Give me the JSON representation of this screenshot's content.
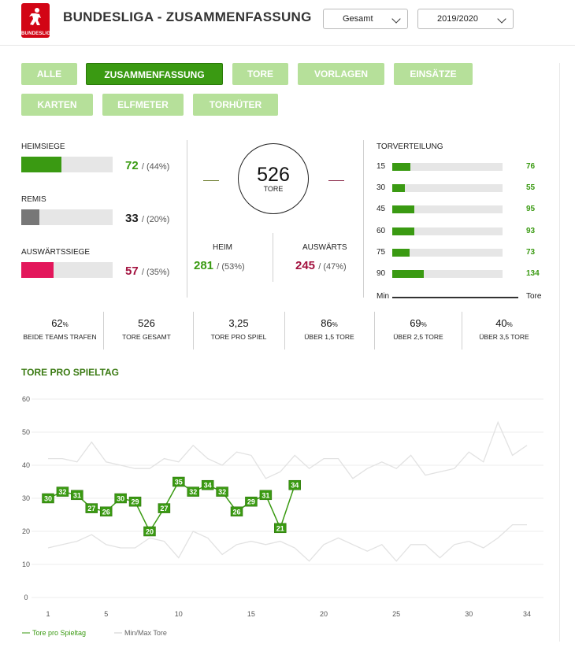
{
  "header": {
    "logo_text": "BUNDESLIGA",
    "title": "BUNDESLIGA - ZUSAMMENFASSUNG",
    "filter_selected": "Gesamt",
    "season_selected": "2019/2020"
  },
  "tabs": [
    {
      "label": "ALLE",
      "active": false
    },
    {
      "label": "ZUSAMMENFASSUNG",
      "active": true
    },
    {
      "label": "TORE",
      "active": false
    },
    {
      "label": "VORLAGEN",
      "active": false
    },
    {
      "label": "EINSÄTZE",
      "active": false
    },
    {
      "label": "KARTEN",
      "active": false
    },
    {
      "label": "ELFMETER",
      "active": false
    },
    {
      "label": "TORHÜTER",
      "active": false
    }
  ],
  "results": {
    "home": {
      "label": "HEIMSIEGE",
      "value": "72",
      "pct": "/ (44%)",
      "fraction": 0.44,
      "color": "#3a9a12"
    },
    "draw": {
      "label": "REMIS",
      "value": "33",
      "pct": "/ (20%)",
      "fraction": 0.2,
      "color": "#777777"
    },
    "away": {
      "label": "AUSWÄRTSSIEGE",
      "value": "57",
      "pct": "/ (35%)",
      "fraction": 0.35,
      "color": "#e3175b"
    }
  },
  "goals": {
    "total": "526",
    "total_label": "TORE",
    "home_label": "HEIM",
    "home_value": "281",
    "home_pct": "/ (53%)",
    "away_label": "AUSWÄRTS",
    "away_value": "245",
    "away_pct": "/ (47%)",
    "home_color": "#3a9a12",
    "away_color": "#a3123f"
  },
  "distribution": {
    "title": "TORVERTEILUNG",
    "axis_min": "Min",
    "axis_tore": "Tore",
    "max_value": 134,
    "rows": [
      {
        "min": "15",
        "value": "76",
        "n": 76
      },
      {
        "min": "30",
        "value": "55",
        "n": 55
      },
      {
        "min": "45",
        "value": "95",
        "n": 95
      },
      {
        "min": "60",
        "value": "93",
        "n": 93
      },
      {
        "min": "75",
        "value": "73",
        "n": 73
      },
      {
        "min": "90",
        "value": "134",
        "n": 134
      }
    ]
  },
  "stats": [
    {
      "value": "62",
      "unit": "%",
      "label": "BEIDE TEAMS TRAFEN"
    },
    {
      "value": "526",
      "unit": "",
      "label": "TORE GESAMT"
    },
    {
      "value": "3,25",
      "unit": "",
      "label": "TORE PRO SPIEL"
    },
    {
      "value": "86",
      "unit": "%",
      "label": "ÜBER 1,5 TORE"
    },
    {
      "value": "69",
      "unit": "%",
      "label": "ÜBER 2,5 TORE"
    },
    {
      "value": "40",
      "unit": "%",
      "label": "ÜBER 3,5 TORE"
    }
  ],
  "chart_section_title": "TORE PRO SPIELTAG",
  "chart_data": {
    "type": "line",
    "title": "TORE PRO SPIELTAG",
    "xlabel": "",
    "ylabel": "",
    "xlim": [
      1,
      34
    ],
    "ylim": [
      0,
      60
    ],
    "x_ticks": [
      1,
      5,
      10,
      15,
      20,
      25,
      30,
      34
    ],
    "y_ticks": [
      0,
      10,
      20,
      30,
      40,
      50,
      60
    ],
    "grid": "horizontal",
    "legend_position": "bottom-left",
    "series": [
      {
        "name": "Tore pro Spieltag",
        "color": "#3a9a12",
        "x": [
          1,
          2,
          3,
          4,
          5,
          6,
          7,
          8,
          9,
          10,
          11,
          12,
          13,
          14,
          15,
          16,
          17,
          18
        ],
        "values": [
          30,
          32,
          31,
          27,
          26,
          30,
          29,
          20,
          27,
          35,
          32,
          34,
          32,
          26,
          29,
          31,
          21,
          34
        ]
      },
      {
        "name": "Min/Max Tore",
        "color": "#e2e2e2",
        "x": [
          1,
          2,
          3,
          4,
          5,
          6,
          7,
          8,
          9,
          10,
          11,
          12,
          13,
          14,
          15,
          16,
          17,
          18,
          19,
          20,
          21,
          22,
          23,
          24,
          25,
          26,
          27,
          28,
          29,
          30,
          31,
          32,
          33,
          34
        ],
        "max": [
          42,
          42,
          41,
          47,
          41,
          40,
          39,
          39,
          42,
          41,
          46,
          42,
          40,
          44,
          43,
          36,
          38,
          43,
          39,
          42,
          42,
          36,
          39,
          41,
          39,
          43,
          37,
          38,
          39,
          44,
          41,
          53,
          43,
          46
        ],
        "min": [
          15,
          16,
          17,
          19,
          16,
          15,
          15,
          18,
          17,
          12,
          20,
          18,
          13,
          16,
          17,
          16,
          17,
          15,
          11,
          16,
          18,
          16,
          14,
          16,
          11,
          16,
          16,
          12,
          16,
          17,
          15,
          18,
          22,
          22
        ]
      }
    ]
  }
}
